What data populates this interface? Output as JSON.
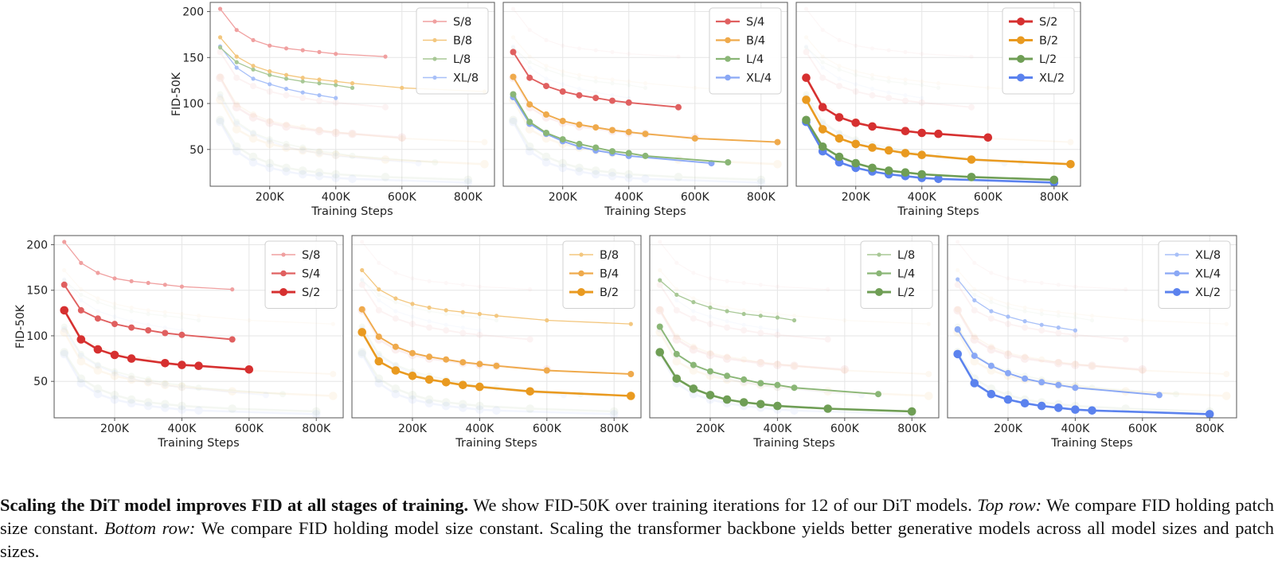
{
  "x_tick_labels": [
    "200K",
    "400K",
    "600K",
    "800K"
  ],
  "y_tick_labels": [
    "50",
    "100",
    "150",
    "200"
  ],
  "xlabel": "Training Steps",
  "ylabel": "FID-50K",
  "series": {
    "S/8": {
      "name": "S/8",
      "color": "#f0a0a0",
      "x": [
        50,
        100,
        150,
        200,
        250,
        300,
        350,
        400,
        550
      ],
      "y": [
        203,
        180,
        169,
        163,
        160,
        158,
        156,
        154,
        151
      ]
    },
    "S/4": {
      "name": "S/4",
      "color": "#e06060",
      "x": [
        50,
        100,
        150,
        200,
        250,
        300,
        350,
        400,
        550
      ],
      "y": [
        156,
        128,
        119,
        113,
        109,
        106,
        103,
        101,
        96
      ]
    },
    "S/2": {
      "name": "S/2",
      "color": "#d63030",
      "x": [
        50,
        100,
        150,
        200,
        250,
        350,
        400,
        450,
        600
      ],
      "y": [
        128,
        96,
        85,
        79,
        75,
        70,
        68,
        67,
        63
      ]
    },
    "B/8": {
      "name": "B/8",
      "color": "#f3c77f",
      "x": [
        50,
        100,
        150,
        200,
        250,
        300,
        350,
        400,
        450,
        600,
        850
      ],
      "y": [
        172,
        151,
        141,
        135,
        131,
        128,
        126,
        124,
        122,
        117,
        113
      ]
    },
    "B/4": {
      "name": "B/4",
      "color": "#efaa4c",
      "x": [
        50,
        100,
        150,
        200,
        250,
        300,
        350,
        400,
        450,
        600,
        850
      ],
      "y": [
        129,
        99,
        88,
        81,
        77,
        74,
        71,
        69,
        67,
        62,
        58
      ]
    },
    "B/2": {
      "name": "B/2",
      "color": "#e99a20",
      "x": [
        50,
        100,
        150,
        200,
        250,
        300,
        350,
        400,
        550,
        850
      ],
      "y": [
        104,
        72,
        62,
        56,
        52,
        49,
        46,
        44,
        39,
        34
      ]
    },
    "L/8": {
      "name": "L/8",
      "color": "#a8c896",
      "x": [
        50,
        100,
        150,
        200,
        250,
        300,
        350,
        400,
        450
      ],
      "y": [
        161,
        145,
        137,
        131,
        127,
        124,
        122,
        120,
        117
      ]
    },
    "L/4": {
      "name": "L/4",
      "color": "#8ab676",
      "x": [
        50,
        100,
        150,
        200,
        250,
        300,
        350,
        400,
        450,
        700
      ],
      "y": [
        110,
        80,
        68,
        61,
        56,
        52,
        48,
        46,
        43,
        36
      ]
    },
    "L/2": {
      "name": "L/2",
      "color": "#6f9e55",
      "x": [
        50,
        100,
        150,
        200,
        250,
        300,
        350,
        400,
        550,
        800
      ],
      "y": [
        82,
        53,
        42,
        35,
        30,
        27,
        25,
        23,
        20,
        17
      ]
    },
    "XL/8": {
      "name": "XL/8",
      "color": "#a8c0f8",
      "x": [
        50,
        100,
        150,
        200,
        250,
        300,
        350,
        400
      ],
      "y": [
        162,
        139,
        127,
        121,
        116,
        112,
        109,
        106
      ]
    },
    "XL/4": {
      "name": "XL/4",
      "color": "#8aa8f5",
      "x": [
        50,
        100,
        150,
        200,
        250,
        300,
        350,
        400,
        650
      ],
      "y": [
        107,
        78,
        67,
        59,
        53,
        49,
        46,
        43,
        35
      ]
    },
    "XL/2": {
      "name": "XL/2",
      "color": "#5b82ee",
      "x": [
        50,
        100,
        150,
        200,
        250,
        300,
        350,
        400,
        450,
        800
      ],
      "y": [
        80,
        48,
        36,
        30,
        26,
        23,
        21,
        19,
        18,
        14
      ]
    }
  },
  "panels": [
    {
      "legend": [
        "S/8",
        "B/8",
        "L/8",
        "XL/8"
      ]
    },
    {
      "legend": [
        "S/4",
        "B/4",
        "L/4",
        "XL/4"
      ]
    },
    {
      "legend": [
        "S/2",
        "B/2",
        "L/2",
        "XL/2"
      ]
    },
    {
      "legend": [
        "S/8",
        "S/4",
        "S/2"
      ]
    },
    {
      "legend": [
        "B/8",
        "B/4",
        "B/2"
      ]
    },
    {
      "legend": [
        "L/8",
        "L/4",
        "L/2"
      ]
    },
    {
      "legend": [
        "XL/8",
        "XL/4",
        "XL/2"
      ]
    }
  ],
  "chart_data": {
    "type": "line",
    "xlim": [
      20,
      880
    ],
    "ylim": [
      10,
      210
    ],
    "xticks": [
      200,
      400,
      600,
      800
    ],
    "yticks": [
      50,
      100,
      150,
      200
    ],
    "x_unit": "thousands of training steps",
    "grid": true,
    "legend_placement": "top-right"
  },
  "caption": {
    "lead": "Scaling the DiT model improves FID at all stages of training.",
    "p1": " We show FID-50K over training iterations for 12 of our DiT models. ",
    "top_label": "Top row:",
    "p2": " We compare FID holding patch size constant. ",
    "bottom_label": "Bottom row:",
    "p3": " We compare FID holding model size constant. Scaling the transformer backbone yields better generative models across all model sizes and patch sizes."
  }
}
